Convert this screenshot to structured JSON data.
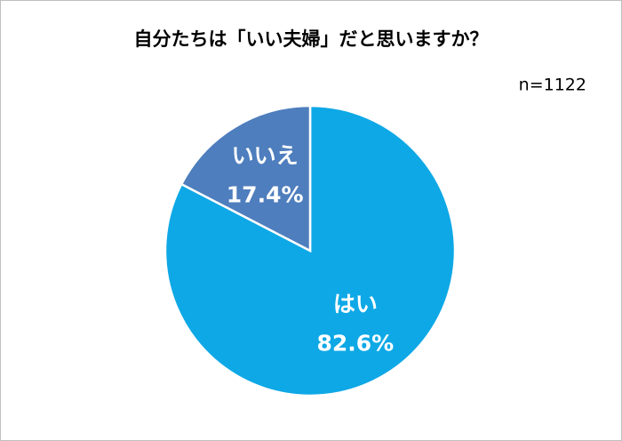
{
  "chart_data": {
    "type": "pie",
    "title": "自分たちは「いい夫婦」だと思いますか？",
    "note": "n=1122",
    "categories": [
      "はい",
      "いいえ"
    ],
    "values": [
      82.6,
      17.4
    ],
    "value_labels": [
      "82.6%",
      "17.4%"
    ],
    "colors": [
      "#0ea8e6",
      "#4e7ebd"
    ]
  }
}
